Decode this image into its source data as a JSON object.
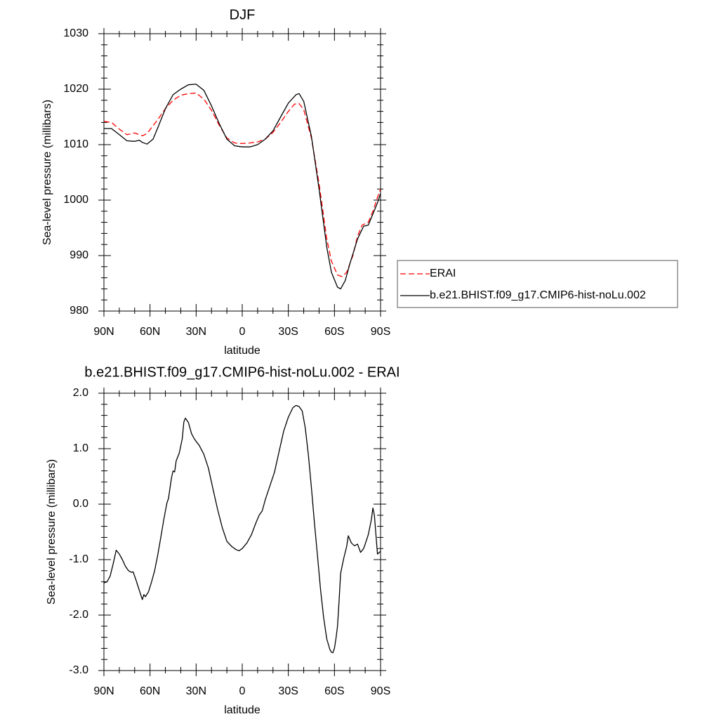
{
  "chart_data": [
    {
      "type": "line",
      "title": "DJF",
      "xlabel": "latitude",
      "ylabel": "Sea-level pressure (millibars)",
      "xlim": [
        90,
        -90
      ],
      "ylim": [
        980,
        1030
      ],
      "xticks": [
        90,
        60,
        30,
        0,
        -30,
        -60,
        -90
      ],
      "xtick_labels": [
        "90N",
        "60N",
        "30N",
        "0",
        "30S",
        "60S",
        "90S"
      ],
      "yticks": [
        980,
        990,
        1000,
        1010,
        1020,
        1030
      ],
      "ytick_labels": [
        "980",
        "990",
        "1000",
        "1010",
        "1020",
        "1030"
      ],
      "legend_position": "right",
      "series": [
        {
          "name": "ERAI",
          "color": "#ff0000",
          "style": "dashed",
          "points": [
            [
              90,
              1014.2
            ],
            [
              85,
              1014.0
            ],
            [
              80,
              1012.8
            ],
            [
              75,
              1011.8
            ],
            [
              70,
              1012.1
            ],
            [
              65,
              1011.6
            ],
            [
              62,
              1012.0
            ],
            [
              55,
              1014.5
            ],
            [
              50,
              1016.5
            ],
            [
              45,
              1018.0
            ],
            [
              40,
              1018.9
            ],
            [
              35,
              1019.2
            ],
            [
              30,
              1019.3
            ],
            [
              25,
              1018.2
            ],
            [
              20,
              1016.2
            ],
            [
              15,
              1013.5
            ],
            [
              10,
              1011.2
            ],
            [
              5,
              1010.3
            ],
            [
              0,
              1010.2
            ],
            [
              -5,
              1010.3
            ],
            [
              -10,
              1010.5
            ],
            [
              -15,
              1011.0
            ],
            [
              -20,
              1012.2
            ],
            [
              -25,
              1014.0
            ],
            [
              -30,
              1016.0
            ],
            [
              -34,
              1017.3
            ],
            [
              -37,
              1017.4
            ],
            [
              -40,
              1016.3
            ],
            [
              -45,
              1011.2
            ],
            [
              -50,
              1003.0
            ],
            [
              -55,
              993.0
            ],
            [
              -58,
              989.0
            ],
            [
              -62,
              986.5
            ],
            [
              -65,
              986.2
            ],
            [
              -68,
              987.0
            ],
            [
              -72,
              990.0
            ],
            [
              -75,
              993.5
            ],
            [
              -78,
              995.5
            ],
            [
              -82,
              996.0
            ],
            [
              -85,
              998.0
            ],
            [
              -88,
              1000.5
            ],
            [
              -90,
              1002.0
            ]
          ]
        },
        {
          "name": "b.e21.BHIST.f09_g17.CMIP6-hist-noLu.002",
          "color": "#000000",
          "style": "solid",
          "points": [
            [
              90,
              1012.9
            ],
            [
              85,
              1012.9
            ],
            [
              80,
              1011.8
            ],
            [
              75,
              1010.7
            ],
            [
              70,
              1010.6
            ],
            [
              67,
              1010.8
            ],
            [
              65,
              1010.4
            ],
            [
              62,
              1010.1
            ],
            [
              58,
              1011.0
            ],
            [
              55,
              1013.0
            ],
            [
              50,
              1016.5
            ],
            [
              45,
              1019.0
            ],
            [
              40,
              1020.0
            ],
            [
              35,
              1020.8
            ],
            [
              30,
              1020.9
            ],
            [
              25,
              1019.8
            ],
            [
              20,
              1017.0
            ],
            [
              15,
              1013.8
            ],
            [
              10,
              1011.0
            ],
            [
              5,
              1009.8
            ],
            [
              0,
              1009.6
            ],
            [
              -5,
              1009.6
            ],
            [
              -10,
              1010.0
            ],
            [
              -15,
              1011.0
            ],
            [
              -20,
              1012.5
            ],
            [
              -25,
              1015.0
            ],
            [
              -30,
              1017.5
            ],
            [
              -35,
              1019.0
            ],
            [
              -37,
              1019.2
            ],
            [
              -40,
              1017.8
            ],
            [
              -45,
              1011.5
            ],
            [
              -50,
              1002.0
            ],
            [
              -55,
              991.5
            ],
            [
              -58,
              987.0
            ],
            [
              -62,
              984.3
            ],
            [
              -64,
              984.0
            ],
            [
              -67,
              985.5
            ],
            [
              -70,
              988.5
            ],
            [
              -75,
              993.0
            ],
            [
              -79,
              995.3
            ],
            [
              -82,
              995.5
            ],
            [
              -85,
              997.5
            ],
            [
              -88,
              999.5
            ],
            [
              -90,
              1001.2
            ]
          ]
        }
      ]
    },
    {
      "type": "line",
      "title": "b.e21.BHIST.f09_g17.CMIP6-hist-noLu.002 - ERAI",
      "xlabel": "latitude",
      "ylabel": "Sea-level pressure (millibars)",
      "xlim": [
        90,
        -90
      ],
      "ylim": [
        -3.0,
        2.0
      ],
      "xticks": [
        90,
        60,
        30,
        0,
        -30,
        -60,
        -90
      ],
      "xtick_labels": [
        "90N",
        "60N",
        "30N",
        "0",
        "30S",
        "60S",
        "90S"
      ],
      "yticks": [
        -3.0,
        -2.0,
        -1.0,
        0.0,
        1.0,
        2.0
      ],
      "ytick_labels": [
        "-3.0",
        "-2.0",
        "-1.0",
        "0.0",
        "1.0",
        "2.0"
      ],
      "series": [
        {
          "color": "#000000",
          "style": "solid",
          "points": [
            [
              90,
              -1.42
            ],
            [
              88,
              -1.4
            ],
            [
              86,
              -1.3
            ],
            [
              84,
              -1.08
            ],
            [
              82,
              -0.83
            ],
            [
              80,
              -0.9
            ],
            [
              78,
              -1.0
            ],
            [
              76,
              -1.12
            ],
            [
              74,
              -1.2
            ],
            [
              72,
              -1.23
            ],
            [
              71,
              -1.22
            ],
            [
              69,
              -1.38
            ],
            [
              67,
              -1.55
            ],
            [
              65,
              -1.72
            ],
            [
              64,
              -1.63
            ],
            [
              63,
              -1.67
            ],
            [
              61,
              -1.58
            ],
            [
              59,
              -1.4
            ],
            [
              57,
              -1.2
            ],
            [
              55,
              -0.92
            ],
            [
              53,
              -0.6
            ],
            [
              51,
              -0.27
            ],
            [
              49,
              0.02
            ],
            [
              48,
              0.1
            ],
            [
              46,
              0.48
            ],
            [
              45,
              0.6
            ],
            [
              44,
              0.58
            ],
            [
              43,
              0.78
            ],
            [
              41,
              0.92
            ],
            [
              39,
              1.18
            ],
            [
              38,
              1.48
            ],
            [
              37,
              1.55
            ],
            [
              35,
              1.47
            ],
            [
              33,
              1.27
            ],
            [
              31,
              1.17
            ],
            [
              28,
              1.06
            ],
            [
              25,
              0.9
            ],
            [
              22,
              0.65
            ],
            [
              19,
              0.27
            ],
            [
              16,
              -0.1
            ],
            [
              13,
              -0.42
            ],
            [
              10,
              -0.67
            ],
            [
              7,
              -0.76
            ],
            [
              4,
              -0.82
            ],
            [
              2,
              -0.84
            ],
            [
              0,
              -0.8
            ],
            [
              -3,
              -0.7
            ],
            [
              -6,
              -0.55
            ],
            [
              -9,
              -0.33
            ],
            [
              -11,
              -0.2
            ],
            [
              -13,
              -0.12
            ],
            [
              -15,
              0.08
            ],
            [
              -18,
              0.33
            ],
            [
              -21,
              0.58
            ],
            [
              -24,
              0.95
            ],
            [
              -27,
              1.32
            ],
            [
              -30,
              1.57
            ],
            [
              -33,
              1.74
            ],
            [
              -35,
              1.78
            ],
            [
              -37,
              1.76
            ],
            [
              -39,
              1.68
            ],
            [
              -41,
              1.38
            ],
            [
              -43,
              0.9
            ],
            [
              -45,
              0.3
            ],
            [
              -47,
              -0.35
            ],
            [
              -49,
              -0.95
            ],
            [
              -51,
              -1.55
            ],
            [
              -53,
              -2.05
            ],
            [
              -55,
              -2.43
            ],
            [
              -57,
              -2.62
            ],
            [
              -58,
              -2.67
            ],
            [
              -59,
              -2.68
            ],
            [
              -60,
              -2.6
            ],
            [
              -61,
              -2.42
            ],
            [
              -62,
              -2.2
            ],
            [
              -63,
              -1.75
            ],
            [
              -64,
              -1.25
            ],
            [
              -66,
              -0.98
            ],
            [
              -68,
              -0.76
            ],
            [
              -69,
              -0.57
            ],
            [
              -71,
              -0.7
            ],
            [
              -73,
              -0.75
            ],
            [
              -75,
              -0.72
            ],
            [
              -77,
              -0.87
            ],
            [
              -79,
              -0.8
            ],
            [
              -80,
              -0.72
            ],
            [
              -82,
              -0.55
            ],
            [
              -84,
              -0.28
            ],
            [
              -85,
              -0.07
            ],
            [
              -86,
              -0.2
            ],
            [
              -87,
              -0.55
            ],
            [
              -88,
              -0.9
            ],
            [
              -90,
              -0.85
            ]
          ]
        }
      ]
    }
  ]
}
